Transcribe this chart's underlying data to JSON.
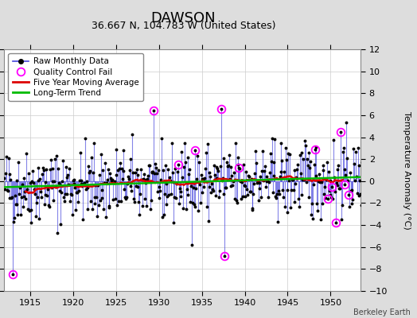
{
  "title": "DAWSON",
  "subtitle": "36.667 N, 104.783 W (United States)",
  "ylabel": "Temperature Anomaly (°C)",
  "credit": "Berkeley Earth",
  "xlim": [
    1912.0,
    1953.5
  ],
  "ylim": [
    -10,
    12
  ],
  "yticks": [
    -10,
    -8,
    -6,
    -4,
    -2,
    0,
    2,
    4,
    6,
    8,
    10,
    12
  ],
  "xticks": [
    1915,
    1920,
    1925,
    1930,
    1935,
    1940,
    1945,
    1950
  ],
  "line_color": "#4444dd",
  "dot_color": "#000000",
  "ma_color": "#dd0000",
  "trend_color": "#00bb00",
  "qc_color": "#ff00ff",
  "bg_color": "#dddddd",
  "plot_bg": "#ffffff",
  "legend_labels": [
    "Raw Monthly Data",
    "Quality Control Fail",
    "Five Year Moving Average",
    "Long-Term Trend"
  ],
  "title_fontsize": 13,
  "subtitle_fontsize": 9,
  "label_fontsize": 8,
  "tick_fontsize": 8,
  "seed": 42,
  "start_year": 1912,
  "end_year": 1953,
  "months": 12
}
